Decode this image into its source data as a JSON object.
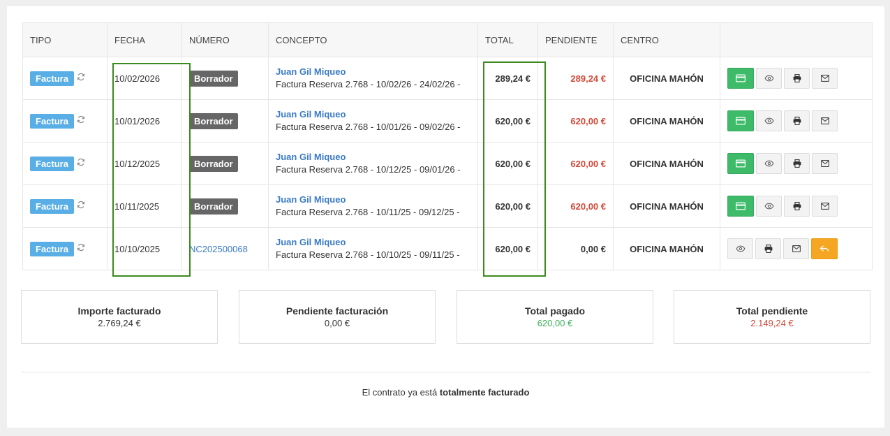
{
  "table": {
    "headers": {
      "tipo": "TIPO",
      "fecha": "FECHA",
      "numero": "NÚMERO",
      "concepto": "CONCEPTO",
      "total": "TOTAL",
      "pendiente": "PENDIENTE",
      "centro": "CENTRO"
    },
    "rows": [
      {
        "tipo": "Factura",
        "fecha": "10/02/2026",
        "numero": "Borrador",
        "numero_is_draft": true,
        "cliente": "Juan Gil Miqueo",
        "concepto": "Factura Reserva 2.768 - 10/02/26 - 24/02/26 -",
        "total": "289,24 €",
        "pendiente": "289,24 €",
        "centro": "OFICINA MAHÓN"
      },
      {
        "tipo": "Factura",
        "fecha": "10/01/2026",
        "numero": "Borrador",
        "numero_is_draft": true,
        "cliente": "Juan Gil Miqueo",
        "concepto": "Factura Reserva 2.768 - 10/01/26 - 09/02/26 -",
        "total": "620,00 €",
        "pendiente": "620,00 €",
        "centro": "OFICINA MAHÓN"
      },
      {
        "tipo": "Factura",
        "fecha": "10/12/2025",
        "numero": "Borrador",
        "numero_is_draft": true,
        "cliente": "Juan Gil Miqueo",
        "concepto": "Factura Reserva 2.768 - 10/12/25 - 09/01/26 -",
        "total": "620,00 €",
        "pendiente": "620,00 €",
        "centro": "OFICINA MAHÓN"
      },
      {
        "tipo": "Factura",
        "fecha": "10/11/2025",
        "numero": "Borrador",
        "numero_is_draft": true,
        "cliente": "Juan Gil Miqueo",
        "concepto": "Factura Reserva 2.768 - 10/11/25 - 09/12/25 -",
        "total": "620,00 €",
        "pendiente": "620,00 €",
        "centro": "OFICINA MAHÓN"
      },
      {
        "tipo": "Factura",
        "fecha": "10/10/2025",
        "numero": "NC202500068",
        "numero_is_draft": false,
        "cliente": "Juan Gil Miqueo",
        "concepto": "Factura Reserva 2.768 - 10/10/25 - 09/11/25 -",
        "total": "620,00 €",
        "pendiente": "0,00 €",
        "centro": "OFICINA MAHÓN"
      }
    ]
  },
  "summary": [
    {
      "label": "Importe facturado",
      "value": "2.769,24 €",
      "color": "#333333"
    },
    {
      "label": "Pendiente facturación",
      "value": "0,00 €",
      "color": "#333333"
    },
    {
      "label": "Total pagado",
      "value": "620,00 €",
      "color": "#3dae5c"
    },
    {
      "label": "Total pendiente",
      "value": "2.149,24 €",
      "color": "#d14a3a"
    }
  ],
  "footer": {
    "prefix": "El contrato ya está ",
    "emphasis": "totalmente facturado"
  },
  "icons": {
    "sync": "sync-icon",
    "pay": "credit-card-icon",
    "view": "eye-icon",
    "print": "printer-icon",
    "email": "envelope-icon",
    "return": "reply-icon"
  },
  "colors": {
    "factura_badge": "#5aaee6",
    "borrador_badge": "#666666",
    "pay_button": "#3dbb68",
    "return_button": "#f5a623",
    "pending_red": "#d14a3a",
    "highlight": "#3c8a1e",
    "link": "#3a7bc8"
  }
}
